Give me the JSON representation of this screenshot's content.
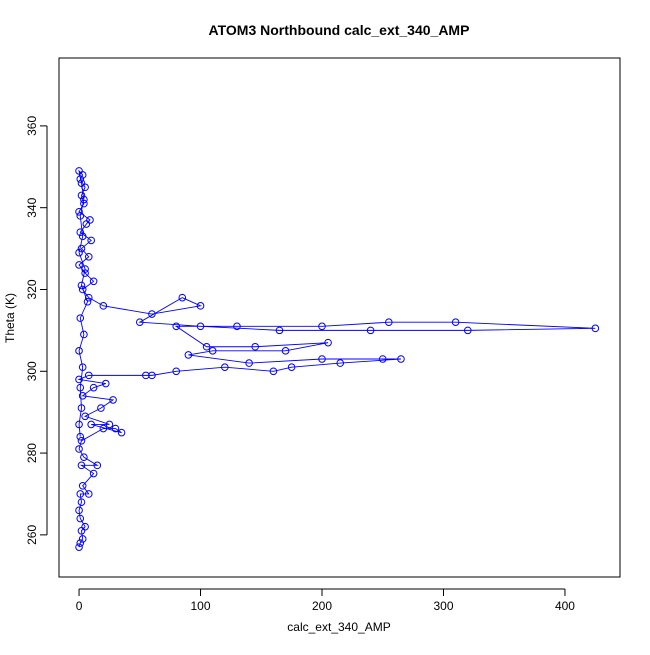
{
  "chart_data": {
    "type": "line",
    "markers": true,
    "title": "ATOM3 Northbound calc_ext_340_AMP",
    "x_label": "calc_ext_340_AMP",
    "y_label": "Theta (K)",
    "color": "#0000ff",
    "xlim": [
      -16.5,
      445.3
    ],
    "ylim": [
      249.7,
      376.6
    ],
    "xticks": [
      0,
      100,
      200,
      300,
      400
    ],
    "yticks": [
      260,
      280,
      300,
      320,
      340,
      360
    ],
    "x": [
      0,
      1,
      3,
      2,
      5,
      1,
      0,
      2,
      1,
      8,
      3,
      12,
      2,
      15,
      4,
      0,
      2,
      20,
      30,
      35,
      10,
      25,
      5,
      18,
      28,
      3,
      12,
      22,
      0,
      8,
      55,
      60,
      80,
      120,
      160,
      175,
      215,
      265,
      250,
      200,
      140,
      90,
      110,
      170,
      205,
      145,
      105,
      80,
      130,
      200,
      255,
      310,
      425,
      320,
      240,
      165,
      100,
      50,
      85,
      100,
      60,
      20,
      8,
      3,
      12,
      5,
      0,
      8,
      2,
      10,
      1,
      6,
      9,
      0,
      4,
      2,
      5,
      1,
      3,
      0,
      2,
      4,
      1,
      3,
      0,
      5,
      2,
      7,
      1,
      4,
      0,
      3,
      1,
      2,
      0,
      1
    ],
    "values": [
      257,
      258,
      259,
      261,
      262,
      264,
      266,
      268,
      270,
      270,
      272,
      275,
      277,
      277,
      279,
      281,
      283,
      286,
      286,
      285,
      287,
      287,
      289,
      291,
      293,
      294,
      296,
      297,
      298,
      299,
      299,
      299,
      300,
      301,
      300,
      301,
      302,
      303,
      303,
      303,
      302,
      304,
      305,
      305,
      307,
      306,
      306,
      311,
      311,
      311,
      312,
      312,
      310.5,
      310,
      310,
      310,
      311,
      312,
      318,
      316,
      314,
      316,
      318,
      320,
      322,
      324,
      326,
      328,
      330,
      332,
      334,
      336,
      337,
      339,
      341,
      343,
      345,
      347,
      348,
      349,
      346,
      342,
      338,
      333,
      329,
      325,
      321,
      317,
      313,
      309,
      305,
      301,
      296,
      291,
      287,
      284
    ]
  }
}
